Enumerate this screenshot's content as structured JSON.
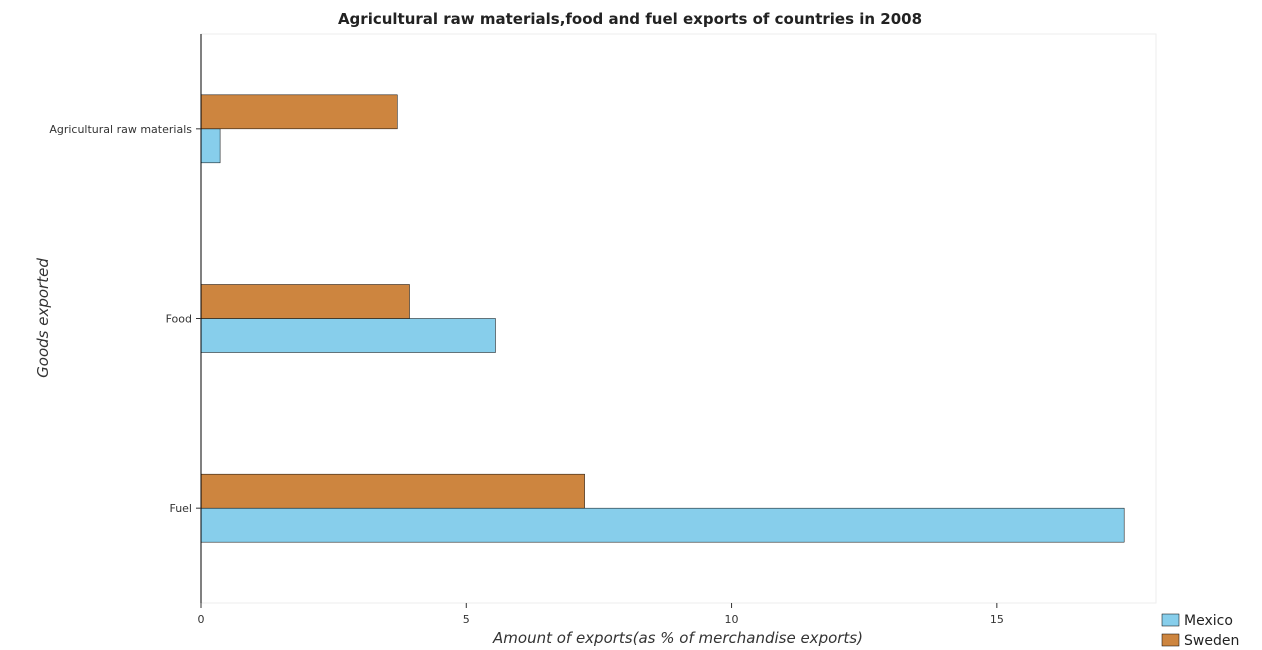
{
  "chart_data": {
    "type": "bar",
    "orientation": "horizontal",
    "title": "Agricultural raw materials,food and fuel exports of countries in 2008",
    "xlabel": "Amount of exports(as % of merchandise exports)",
    "ylabel": "Goods exported",
    "categories": [
      "Agricultural raw materials",
      "Food",
      "Fuel"
    ],
    "xlim": [
      0,
      18
    ],
    "xticks": [
      0,
      5,
      10,
      15
    ],
    "xtick_labels": [
      "0",
      "5",
      "10",
      "15"
    ],
    "grid": false,
    "legend_position": "bottom-right",
    "series": [
      {
        "name": "Mexico",
        "color": "#87ceeb",
        "values": [
          0.36,
          5.55,
          17.4
        ]
      },
      {
        "name": "Sweden",
        "color": "#cd853f",
        "values": [
          3.7,
          3.93,
          7.23
        ]
      }
    ]
  }
}
